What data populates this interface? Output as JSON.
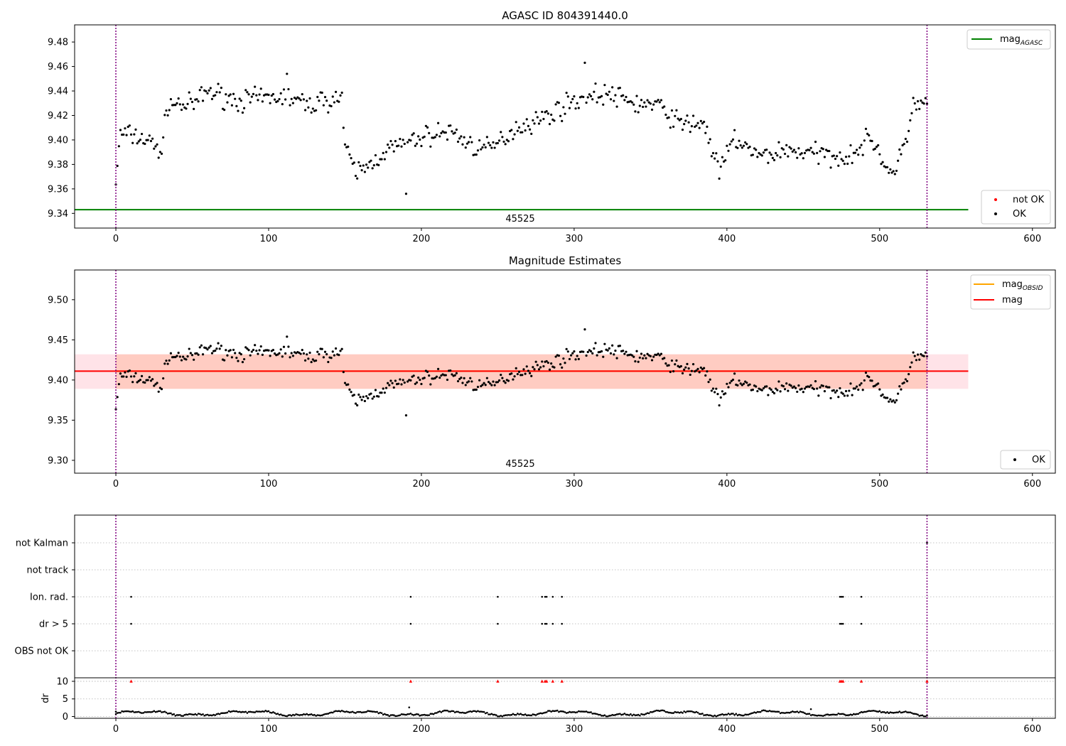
{
  "chart_data": [
    {
      "type": "scatter",
      "title": "AGASC ID 804391440.0",
      "xlim": [
        -27,
        615
      ],
      "ylim": [
        9.328,
        9.494
      ],
      "xticks": [
        0,
        100,
        200,
        300,
        400,
        500,
        600
      ],
      "yticks": [
        9.34,
        9.36,
        9.38,
        9.4,
        9.42,
        9.44,
        9.46,
        9.48
      ],
      "annotation": "45525",
      "annotation_x": 265,
      "vlines": [
        0,
        531
      ],
      "hline": {
        "label": "mag_AGASC",
        "y": 9.343,
        "x_range": [
          -27,
          558
        ],
        "color": "#008000"
      },
      "legend_lines": [
        "mag",
        "AGASC"
      ],
      "legend_points": [
        "not OK",
        "OK"
      ],
      "colors": {
        "ok": "#000000",
        "not_ok": "#ff0000",
        "vline": "#800080"
      },
      "anchors": [
        [
          0,
          9.366
        ],
        [
          3,
          9.405
        ],
        [
          10,
          9.404
        ],
        [
          20,
          9.4
        ],
        [
          30,
          9.391
        ],
        [
          34,
          9.43
        ],
        [
          50,
          9.428
        ],
        [
          60,
          9.44
        ],
        [
          80,
          9.432
        ],
        [
          100,
          9.434
        ],
        [
          112,
          9.436
        ],
        [
          125,
          9.428
        ],
        [
          135,
          9.432
        ],
        [
          148,
          9.435
        ],
        [
          150,
          9.392
        ],
        [
          157,
          9.374
        ],
        [
          165,
          9.378
        ],
        [
          175,
          9.39
        ],
        [
          190,
          9.398
        ],
        [
          205,
          9.404
        ],
        [
          220,
          9.407
        ],
        [
          232,
          9.396
        ],
        [
          245,
          9.392
        ],
        [
          262,
          9.41
        ],
        [
          280,
          9.418
        ],
        [
          300,
          9.432
        ],
        [
          320,
          9.438
        ],
        [
          340,
          9.43
        ],
        [
          355,
          9.428
        ],
        [
          370,
          9.413
        ],
        [
          385,
          9.414
        ],
        [
          395,
          9.373
        ],
        [
          405,
          9.402
        ],
        [
          420,
          9.386
        ],
        [
          440,
          9.392
        ],
        [
          460,
          9.388
        ],
        [
          480,
          9.387
        ],
        [
          495,
          9.402
        ],
        [
          502,
          9.383
        ],
        [
          510,
          9.37
        ],
        [
          518,
          9.405
        ],
        [
          522,
          9.43
        ],
        [
          531,
          9.428
        ]
      ]
    },
    {
      "type": "scatter",
      "title": "Magnitude Estimates",
      "xlim": [
        -27,
        615
      ],
      "ylim": [
        9.284,
        9.537
      ],
      "xticks": [
        0,
        100,
        200,
        300,
        400,
        500,
        600
      ],
      "yticks": [
        9.3,
        9.35,
        9.4,
        9.45,
        9.5
      ],
      "annotation": "45525",
      "annotation_x": 265,
      "vlines": [
        0,
        531
      ],
      "mag": 9.411,
      "mag_band": [
        9.389,
        9.432
      ],
      "mag_obsid": 9.411,
      "legend_lines": [
        "mag",
        "OBSID",
        "mag"
      ],
      "legend_points": [
        "OK"
      ],
      "colors": {
        "mag": "#ff0000",
        "mag_obsid": "#ffa500",
        "band_mag": "#ffc0cb",
        "band_obsid": "#ffa07a"
      }
    },
    {
      "type": "scatter",
      "title": "",
      "xlim": [
        -27,
        615
      ],
      "xticks": [
        0,
        100,
        200,
        300,
        400,
        500,
        600
      ],
      "flag_labels": [
        "not Kalman",
        "not track",
        "Ion. rad.",
        "dr > 5",
        "OBS not OK"
      ],
      "flag_points": {
        "not Kalman": [
          531
        ],
        "not track": [],
        "Ion. rad.": [
          10,
          193,
          250,
          279,
          281,
          282,
          286,
          292,
          474,
          475,
          476,
          488
        ],
        "dr > 5": [
          10,
          193,
          250,
          279,
          281,
          282,
          286,
          292,
          474,
          475,
          476,
          488
        ],
        "OBS not OK": []
      },
      "dr_ylabel": "dr",
      "dr_ylim": [
        -0.5,
        11
      ],
      "dr_yticks": [
        0,
        5,
        10
      ],
      "dr_clipped_x": [
        10,
        193,
        250,
        279,
        281,
        282,
        286,
        292,
        474,
        475,
        476,
        488,
        531
      ],
      "dr_outliers": [
        [
          192,
          2.6
        ],
        [
          0,
          1.4
        ],
        [
          455,
          2.1
        ]
      ]
    }
  ]
}
